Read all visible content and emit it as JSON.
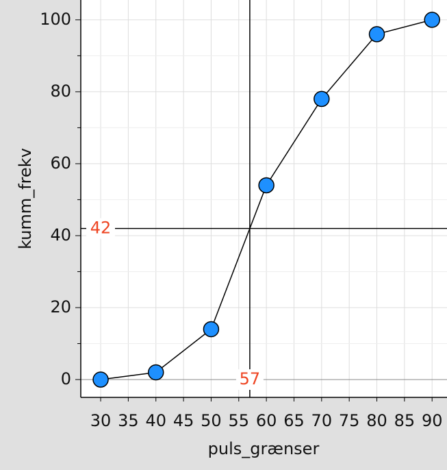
{
  "chart_data": {
    "type": "line",
    "x": [
      30,
      40,
      50,
      60,
      70,
      80,
      90
    ],
    "series": [
      {
        "values": [
          0,
          2,
          14,
          54,
          78,
          96,
          100
        ],
        "color": "#1e90ff"
      }
    ],
    "xlabel": "puls_grænser",
    "ylabel": "kumm_frekv",
    "xlim": [
      26.4,
      92.7
    ],
    "ylim": [
      -4.95,
      105.5
    ],
    "xticks": [
      30,
      35,
      40,
      45,
      50,
      55,
      60,
      65,
      70,
      75,
      80,
      85,
      90
    ],
    "yticks": [
      0,
      20,
      40,
      60,
      80,
      100
    ],
    "yminor": [
      10,
      30,
      50,
      70,
      90
    ],
    "vlines": [
      57
    ],
    "hlines": [
      42
    ],
    "grid": true
  }
}
